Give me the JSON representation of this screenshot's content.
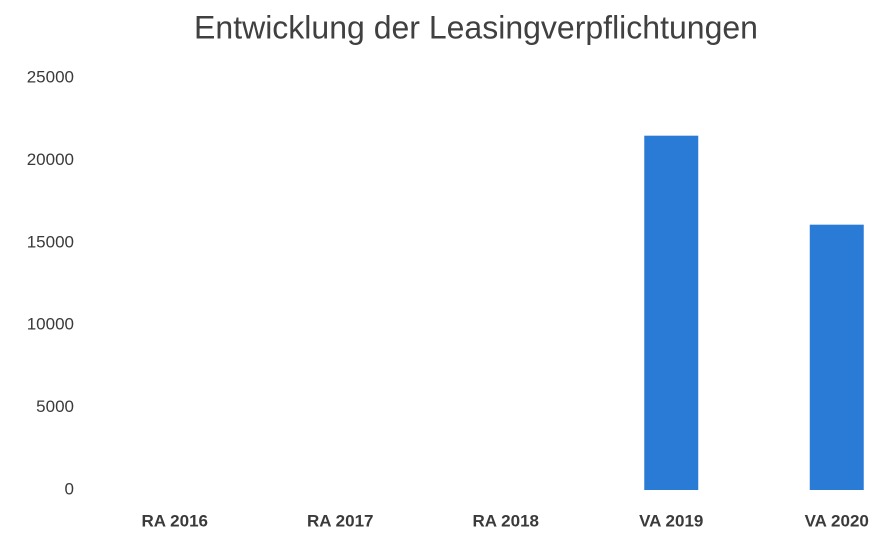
{
  "chart_data": {
    "type": "bar",
    "title": "Entwicklung der Leasingverpflichtungen",
    "categories": [
      "RA 2016",
      "RA 2017",
      "RA 2018",
      "VA 2019",
      "VA 2020"
    ],
    "values": [
      0,
      0,
      0,
      21500,
      16100
    ],
    "color": "#2a7bd6",
    "ylim": [
      0,
      25000
    ],
    "yticks": [
      0,
      5000,
      10000,
      15000,
      20000,
      25000
    ],
    "grid": false
  }
}
